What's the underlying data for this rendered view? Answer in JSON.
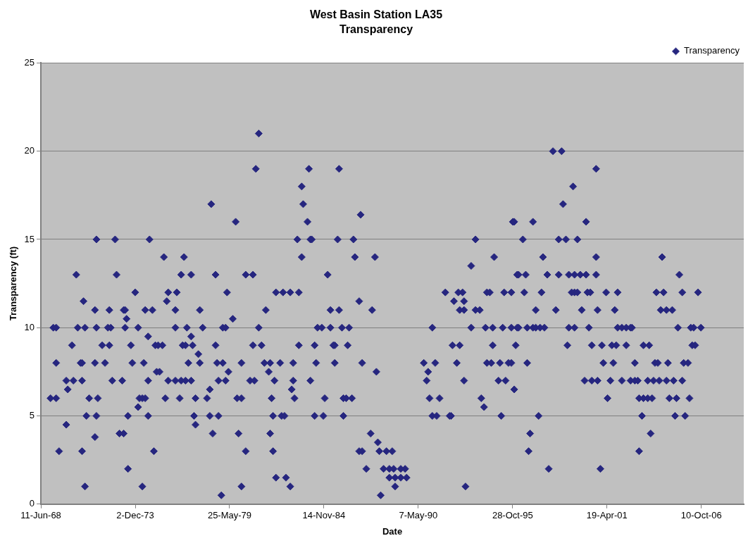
{
  "chart_data": {
    "type": "scatter",
    "title": "West Basin Station LA35",
    "subtitle": "Transparency",
    "xlabel": "Date",
    "ylabel": "Transparency (ft)",
    "xlim": [
      "1968-06-11",
      "2009-03-28"
    ],
    "xticks": [
      {
        "value": "1968-06-11",
        "label": "11-Jun-68"
      },
      {
        "value": "1973-12-02",
        "label": "2-Dec-73"
      },
      {
        "value": "1979-05-25",
        "label": "25-May-79"
      },
      {
        "value": "1984-11-14",
        "label": "14-Nov-84"
      },
      {
        "value": "1990-05-07",
        "label": "7-May-90"
      },
      {
        "value": "1995-10-28",
        "label": "28-Oct-95"
      },
      {
        "value": "2001-04-19",
        "label": "19-Apr-01"
      },
      {
        "value": "2006-10-10",
        "label": "10-Oct-06"
      }
    ],
    "ylim": [
      0,
      25
    ],
    "yticks": [
      0,
      5,
      10,
      15,
      20,
      25
    ],
    "grid": "y",
    "legend": "top right",
    "marker": "diamond",
    "series": [
      {
        "name": "Transparency",
        "color": "#26267f",
        "x": [
          "1970-07",
          "1972-11",
          "1973-12",
          "1970-12",
          "1971-08",
          "1972-06",
          "1973-04",
          "1973-05",
          "1974-07",
          "1974-12",
          "1973-06",
          "1969-03",
          "1969-05",
          "1970-08",
          "1971-01",
          "1971-09",
          "1972-05",
          "1972-07",
          "1973-05",
          "1974-02",
          "1974-09",
          "1970-04",
          "1972-01",
          "1972-06",
          "1973-09",
          "1975-02",
          "1969-05",
          "1970-10",
          "1970-11",
          "1971-08",
          "1972-03",
          "1973-10",
          "1974-06",
          "1975-03",
          "1969-12",
          "1970-05",
          "1970-11",
          "1972-08",
          "1973-03",
          "1974-09",
          "1970-01",
          "1969-01",
          "1969-05",
          "1971-04",
          "1971-10",
          "1974-03",
          "1974-05",
          "1974-07",
          "1974-02",
          "1971-02",
          "1971-09",
          "1973-07",
          "1974-09",
          "1969-12",
          "1973-01",
          "1973-04",
          "1971-08",
          "1969-07",
          "1970-11",
          "1975-01",
          "1973-07",
          "1971-01",
          "1974-05",
          "1971-09",
          "1972-10",
          "1974-10",
          "1981-02",
          "1980-12",
          "1978-05",
          "1979-10",
          "1975-08",
          "1976-10",
          "1976-08",
          "1977-03",
          "1978-08",
          "1980-05",
          "1980-10",
          "1975-11",
          "1976-05",
          "1979-04",
          "1975-10",
          "1976-04",
          "1977-09",
          "1981-07",
          "1979-08",
          "1976-04",
          "1976-12",
          "1977-11",
          "1979-01",
          "1979-03",
          "1981-02",
          "1977-03",
          "1975-04",
          "1975-07",
          "1976-09",
          "1976-11",
          "1977-04",
          "1978-08",
          "1980-10",
          "1981-04",
          "1977-08",
          "1977-01",
          "1977-09",
          "1978-09",
          "1979-01",
          "1980-02",
          "1981-06",
          "1981-10",
          "1975-05",
          "1979-05",
          "1981-09",
          "1975-11",
          "1976-04",
          "1976-08",
          "1976-11",
          "1977-03",
          "1978-10",
          "1979-03",
          "1980-08",
          "1980-11",
          "1982-01",
          "1978-04",
          "1975-09",
          "1976-07",
          "1977-06",
          "1978-02",
          "1979-11",
          "1980-02",
          "1981-11",
          "1977-05",
          "1978-04",
          "1978-10",
          "1981-12",
          "1977-06",
          "1978-06",
          "1979-12",
          "1981-10",
          "1980-05",
          "1981-12",
          "1982-02",
          "1980-02",
          "1978-12",
          "1984-01",
          "1985-10",
          "1983-08",
          "1983-09",
          "1983-12",
          "1983-05",
          "1984-02",
          "1984-03",
          "1985-09",
          "1986-08",
          "1987-01",
          "1983-08",
          "1986-09",
          "1987-11",
          "1985-02",
          "1982-02",
          "1982-07",
          "1982-12",
          "1983-06",
          "1986-12",
          "1985-04",
          "1985-10",
          "1987-09",
          "1984-07",
          "1984-10",
          "1985-04",
          "1985-12",
          "1986-05",
          "1983-06",
          "1984-05",
          "1985-06",
          "1985-07",
          "1986-04",
          "1982-05",
          "1983-02",
          "1984-06",
          "1985-07",
          "1987-02",
          "1987-12",
          "1983-02",
          "1984-02",
          "1983-01",
          "1983-03",
          "1984-12",
          "1986-01",
          "1986-03",
          "1986-07",
          "1982-06",
          "1982-08",
          "1984-05",
          "1984-11",
          "1986-01",
          "1987-08",
          "1988-01",
          "1986-12",
          "1987-02",
          "1988-02",
          "1988-07",
          "1988-11",
          "1987-05",
          "1988-05",
          "1988-09",
          "1988-12",
          "1982-09",
          "1988-09",
          "1982-12",
          "1988-03",
          "1989-01",
          "1989-05",
          "1989-08",
          "1989-01",
          "1989-05",
          "1989-09",
          "1993-02",
          "1991-03",
          "1991-06",
          "1992-03",
          "1992-04",
          "1995-03",
          "1991-01",
          "1991-08",
          "1994-01",
          "1994-03",
          "1990-11",
          "1993-01",
          "1995-01",
          "1995-06",
          "1990-12",
          "1990-09",
          "1991-05",
          "1992-08",
          "1994-05",
          "1994-08",
          "1995-02",
          "1995-08",
          "1992-05",
          "1992-10",
          "1994-09",
          "1996-01",
          "1991-03",
          "1993-06",
          "1994-04",
          "1994-09",
          "1995-04",
          "1995-10",
          "1996-02",
          "1992-10",
          "1993-01",
          "1993-09",
          "1993-12",
          "1992-06",
          "1993-01",
          "1991-12",
          "1992-09",
          "1992-12",
          "1994-05",
          "1994-07",
          "1995-05",
          "1995-10",
          "1993-06",
          "1994-10",
          "1993-09",
          "1995-11",
          "1996-02",
          "1995-12",
          "1998-03",
          "1998-09",
          "2000-09",
          "1999-05",
          "1998-10",
          "1995-12",
          "1997-01",
          "2000-02",
          "1996-06",
          "1998-07",
          "1998-12",
          "1999-08",
          "1997-08",
          "2000-09",
          "1996-03",
          "1996-08",
          "1997-11",
          "1998-07",
          "1999-02",
          "1999-06",
          "1999-10",
          "2000-02",
          "2000-09",
          "1996-07",
          "1997-07",
          "1999-04",
          "1999-06",
          "1999-08",
          "2000-03",
          "2000-05",
          "2001-04",
          "2001-12",
          "1997-03",
          "1998-05",
          "1999-11",
          "2000-10",
          "2001-10",
          "1996-03",
          "1996-09",
          "1997-01",
          "1997-03",
          "1997-06",
          "1997-09",
          "1999-02",
          "1999-06",
          "2000-04",
          "2001-12",
          "2002-03",
          "2002-06",
          "2002-09",
          "1999-01",
          "2000-06",
          "2001-01",
          "2001-08",
          "2001-11",
          "2002-06",
          "1995-10",
          "1996-09",
          "2001-02",
          "2001-09",
          "2000-01",
          "2000-06",
          "2000-10",
          "2001-07",
          "2002-03",
          "2002-09",
          "2001-05",
          "1997-05",
          "1996-11",
          "1996-10",
          "1997-12",
          "2000-12",
          "2004-07",
          "2005-07",
          "2004-03",
          "2004-08",
          "2005-09",
          "2006-08",
          "2004-06",
          "2004-10",
          "2005-02",
          "2005-06",
          "2006-03",
          "2006-05",
          "2006-10",
          "2003-06",
          "2003-10",
          "2006-04",
          "2006-06",
          "2002-12",
          "2004-02",
          "2004-04",
          "2004-11",
          "2005-10",
          "2006-01",
          "2002-12",
          "2003-02",
          "2003-09",
          "2004-01",
          "2004-05",
          "2004-10",
          "2005-03",
          "2005-09",
          "2003-03",
          "2003-06",
          "2003-09",
          "2003-12",
          "2004-12",
          "2005-05",
          "2006-02",
          "2003-05",
          "2005-04",
          "2005-11",
          "2003-11",
          "2003-03",
          "2002-10"
        ],
        "values": [
          13,
          13,
          12,
          11.5,
          11,
          11,
          11,
          11,
          11,
          11,
          10.5,
          10,
          10,
          10,
          10,
          10,
          10,
          10,
          10,
          10,
          9.5,
          9,
          9,
          9,
          9,
          9,
          8,
          8,
          8,
          8,
          8,
          8,
          8,
          7.5,
          7,
          7,
          7,
          7,
          7,
          7,
          6.5,
          6,
          6,
          6,
          6,
          6,
          6,
          6,
          5.5,
          5,
          5,
          5,
          5,
          4.5,
          4,
          4,
          3.8,
          3,
          3,
          3,
          2,
          1,
          1,
          15,
          15,
          15,
          21,
          19,
          17,
          16,
          14,
          14,
          13,
          13,
          13,
          13,
          13,
          12,
          12,
          12,
          11.5,
          11,
          11,
          11,
          10.5,
          10,
          10,
          10,
          10,
          10,
          10,
          9.5,
          9,
          9,
          9,
          9,
          9,
          9,
          9,
          9,
          8.5,
          8,
          8,
          8,
          8,
          8,
          8,
          8,
          7.5,
          7.5,
          7.5,
          7,
          7,
          7,
          7,
          7,
          7,
          7,
          7,
          7,
          7,
          6.5,
          6,
          6,
          6,
          6,
          6,
          6,
          6,
          5,
          5,
          5,
          5,
          4.5,
          4,
          4,
          4,
          3,
          3,
          1.5,
          1,
          0.5,
          19,
          19,
          18,
          17,
          16,
          15,
          15,
          15,
          15,
          15,
          16.4,
          14,
          14,
          14,
          13,
          12,
          12,
          12,
          12,
          11.5,
          11,
          11,
          11,
          10,
          10,
          10,
          10,
          10,
          9,
          9,
          9,
          9,
          9,
          8,
          8,
          8,
          8,
          8,
          7.5,
          7,
          7,
          6.5,
          6,
          6,
          6,
          6,
          6,
          5,
          5,
          5,
          5,
          5,
          4,
          3.5,
          3,
          3,
          3,
          3,
          3,
          2,
          2,
          2,
          2,
          1.5,
          1.5,
          1,
          0.5,
          1,
          2,
          2,
          1.5,
          1.5,
          1.5,
          1,
          5,
          5,
          5,
          5,
          5,
          6,
          6,
          6,
          5.5,
          7,
          7,
          7,
          7,
          7.5,
          8,
          8,
          8,
          8,
          8,
          8,
          8,
          9,
          9,
          9,
          9,
          10,
          10,
          10,
          10,
          10,
          10,
          10,
          11,
          11,
          11,
          11,
          11.5,
          11.5,
          12,
          12,
          12,
          12,
          12,
          12,
          12,
          13.5,
          14,
          15,
          16,
          13,
          6.5,
          20,
          20,
          19,
          18,
          17,
          16,
          16,
          16,
          15,
          15,
          15,
          15,
          14,
          14,
          13,
          13,
          13,
          13,
          13,
          13,
          13,
          13,
          13,
          12,
          12,
          12,
          12,
          12,
          12,
          12,
          12,
          12,
          11,
          11,
          11,
          11,
          11,
          10,
          10,
          10,
          10,
          10,
          10,
          10,
          10,
          10,
          10,
          10,
          10,
          10,
          9,
          9,
          9,
          9,
          9,
          9,
          8,
          8,
          8,
          8,
          7,
          7,
          7,
          7,
          7,
          7,
          6,
          5,
          4,
          3,
          2,
          2,
          14,
          13,
          12,
          12,
          12,
          12,
          11,
          11,
          11,
          10,
          10,
          10,
          10,
          9,
          9,
          9,
          9,
          8,
          8,
          8,
          8,
          8,
          8,
          7,
          7,
          7,
          7,
          7,
          7,
          7,
          7,
          6,
          6,
          6,
          6,
          6,
          6,
          6,
          5,
          5,
          5,
          4,
          3,
          10
        ]
      }
    ]
  }
}
